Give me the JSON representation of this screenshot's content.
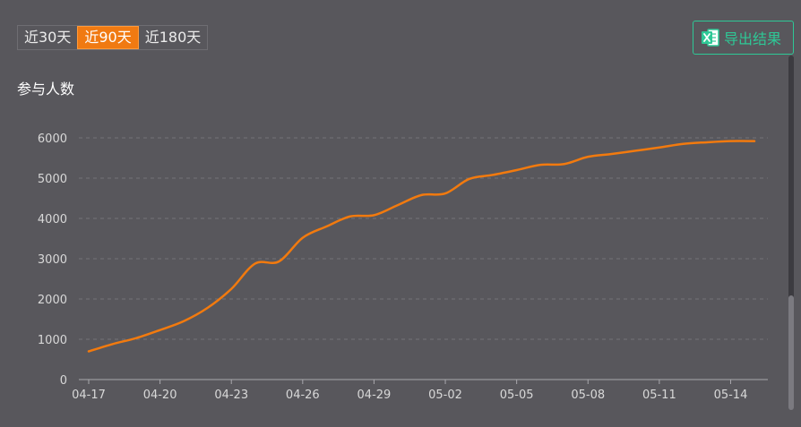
{
  "toolbar": {
    "tabs": [
      {
        "label": "近30天",
        "active": false
      },
      {
        "label": "近90天",
        "active": true
      },
      {
        "label": "近180天",
        "active": false
      }
    ],
    "export_label": "导出结果",
    "export_icon": "excel-icon",
    "accent": "#f07a12",
    "export_color": "#2ec896"
  },
  "chart_data": {
    "type": "line",
    "title": "参与人数",
    "ylim": [
      0,
      6000
    ],
    "yticks": [
      0,
      1000,
      2000,
      3000,
      4000,
      5000,
      6000
    ],
    "xticks": [
      "04-17",
      "04-20",
      "04-23",
      "04-26",
      "04-29",
      "05-02",
      "05-05",
      "05-08",
      "05-11",
      "05-14"
    ],
    "grid": true,
    "line_color": "#f27a0e",
    "x": [
      "04-17",
      "04-18",
      "04-19",
      "04-20",
      "04-21",
      "04-22",
      "04-23",
      "04-24",
      "04-25",
      "04-26",
      "04-27",
      "04-28",
      "04-29",
      "04-30",
      "05-01",
      "05-02",
      "05-03",
      "05-04",
      "05-05",
      "05-06",
      "05-07",
      "05-08",
      "05-09",
      "05-10",
      "05-11",
      "05-12",
      "05-13",
      "05-14",
      "05-15"
    ],
    "series": [
      {
        "values": [
          700,
          880,
          1030,
          1230,
          1450,
          1780,
          2250,
          2880,
          2930,
          3520,
          3800,
          4050,
          4080,
          4330,
          4580,
          4620,
          4980,
          5080,
          5200,
          5330,
          5350,
          5530,
          5600,
          5680,
          5760,
          5850,
          5890,
          5920,
          5920
        ]
      }
    ]
  }
}
